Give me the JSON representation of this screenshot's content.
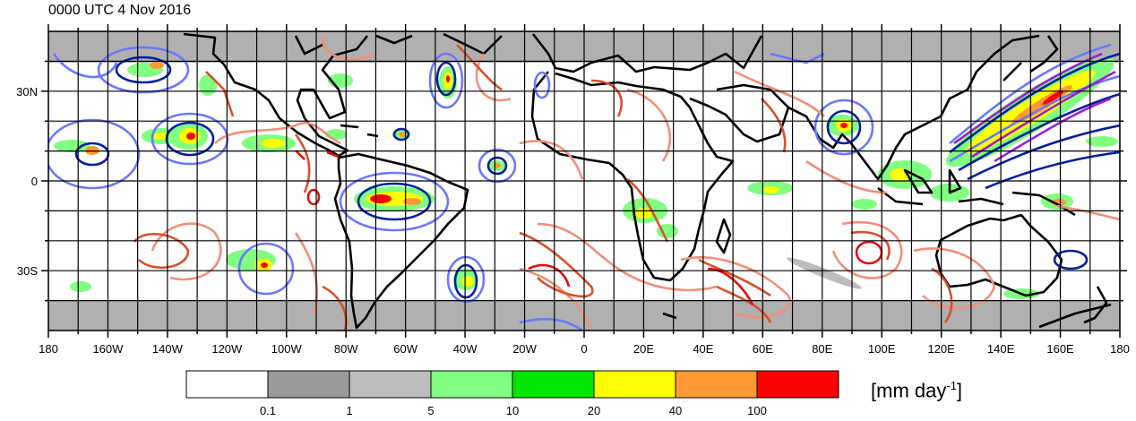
{
  "title": "0000 UTC 4 Nov 2016",
  "map": {
    "lon_labels": [
      "180",
      "160W",
      "140W",
      "120W",
      "100W",
      "80W",
      "60W",
      "40W",
      "20W",
      "0",
      "20E",
      "40E",
      "60E",
      "80E",
      "100E",
      "120E",
      "140E",
      "160E",
      "180"
    ],
    "lon_values": [
      -180,
      -160,
      -140,
      -120,
      -100,
      -80,
      -60,
      -40,
      -20,
      0,
      20,
      40,
      60,
      80,
      100,
      120,
      140,
      160,
      180
    ],
    "lat_labels": [
      "30N",
      "0",
      "30S"
    ],
    "lat_values": [
      30,
      0,
      -30
    ],
    "lat_range": [
      -50,
      50
    ],
    "lon_range": [
      -180,
      180
    ],
    "masked_bands_color": "#b0b0b0",
    "grid_spacing_deg": 10
  },
  "colorbar": {
    "boundaries": [
      "0.1",
      "1",
      "5",
      "10",
      "20",
      "40",
      "100"
    ],
    "colors": [
      "#ffffff",
      "#9a9a9a",
      "#bdbdbd",
      "#80ff80",
      "#00e600",
      "#ffff00",
      "#ff9933",
      "#ff0000"
    ],
    "unit_text": "[mm day",
    "unit_sup": "-1",
    "unit_close": "]"
  },
  "contour_colors": {
    "blue_dark": "#0020a0",
    "blue_light": "#6a78ff",
    "red_light": "#f0907a",
    "red_mid": "#d8502a",
    "red_dark": "#e01010",
    "purple": "#a020d0"
  }
}
